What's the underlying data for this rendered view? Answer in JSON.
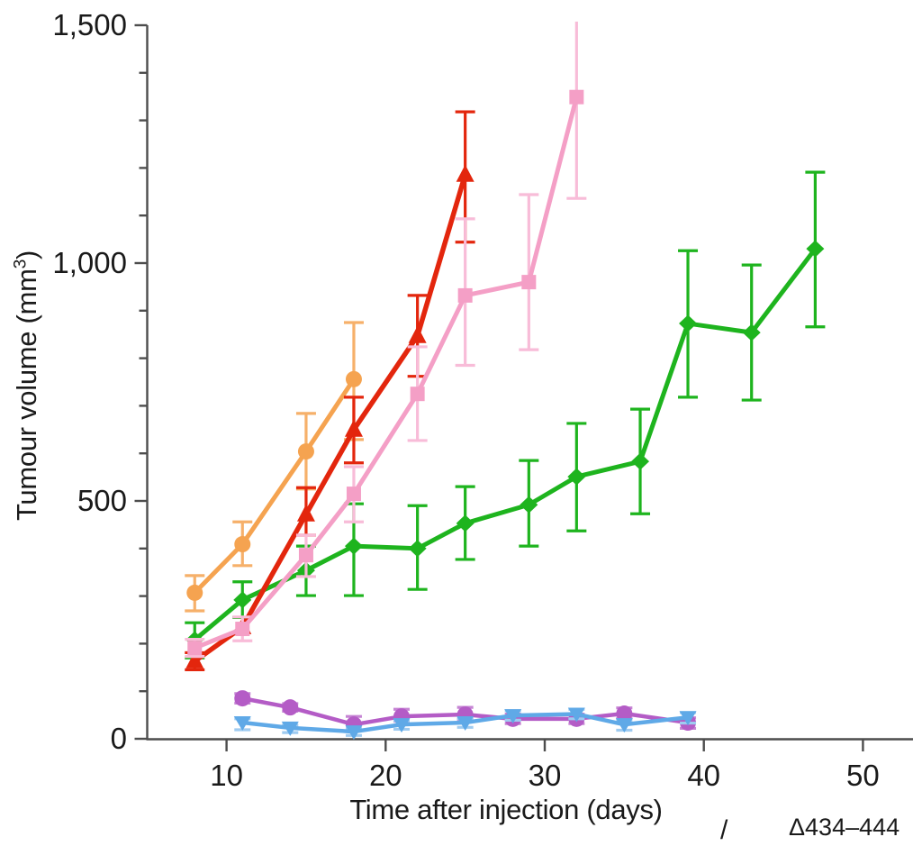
{
  "chart_data": {
    "type": "line",
    "title": "",
    "xlabel": "Time after injection (days)",
    "ylabel": "Tumour volume (mm³)",
    "ylabel_parts": {
      "prefix": "Tumour volume (mm",
      "sup": "3",
      "suffix": ")"
    },
    "xlim": [
      5,
      53
    ],
    "ylim": [
      0,
      1500
    ],
    "grid": false,
    "legend_position": "none-visible (legend cut off at bottom edge)",
    "axis_color": "#4d4d4d",
    "text_color": "#1a1a1a",
    "x_ticks": [
      {
        "value": 10,
        "label": "10"
      },
      {
        "value": 20,
        "label": "20"
      },
      {
        "value": 30,
        "label": "30"
      },
      {
        "value": 40,
        "label": "40"
      },
      {
        "value": 50,
        "label": "50"
      }
    ],
    "y_ticks": [
      {
        "value": 0,
        "label": "0"
      },
      {
        "value": 500,
        "label": "500"
      },
      {
        "value": 1000,
        "label": "1,000"
      },
      {
        "value": 1500,
        "label": "1,500"
      }
    ],
    "y_minor_step": 100,
    "series": [
      {
        "name": "green-diamond",
        "marker": "diamond",
        "color": "#1eb41e",
        "bar_color": "#1eb41e",
        "line_width": 5,
        "days": [
          8,
          11,
          15,
          18,
          22,
          25,
          29,
          32,
          36,
          39,
          43,
          47
        ],
        "values": [
          208,
          292,
          354,
          405,
          400,
          453,
          492,
          551,
          583,
          873,
          854,
          1030
        ],
        "err_up": [
          36,
          38,
          51,
          89,
          90,
          77,
          93,
          112,
          110,
          153,
          142,
          161
        ],
        "err_down": [
          38,
          37,
          53,
          104,
          86,
          76,
          87,
          114,
          110,
          155,
          142,
          164
        ]
      },
      {
        "name": "orange-circle",
        "marker": "circle",
        "color": "#f5a350",
        "bar_color": "#f6b06a",
        "line_width": 5,
        "days": [
          8,
          11,
          15,
          18
        ],
        "values": [
          307,
          409,
          604,
          756
        ],
        "err_up": [
          36,
          47,
          80,
          119
        ],
        "err_down": [
          38,
          45,
          79,
          127
        ]
      },
      {
        "name": "red-triangle",
        "marker": "triangle-up",
        "color": "#e3260d",
        "bar_color": "#e3260d",
        "line_width": 5.5,
        "days": [
          8,
          11,
          15,
          18,
          22,
          25
        ],
        "values": [
          163,
          235,
          472,
          650,
          847,
          1186
        ],
        "err_up": [
          18,
          0,
          56,
          68,
          85,
          132
        ],
        "err_down": [
          18,
          0,
          44,
          70,
          85,
          142
        ]
      },
      {
        "name": "pink-square",
        "marker": "square",
        "color": "#f49fc6",
        "bar_color": "#f8bcd8",
        "line_width": 5,
        "days": [
          8,
          11,
          15,
          18,
          22,
          25,
          29,
          32
        ],
        "values": [
          191,
          231,
          386,
          515,
          725,
          932,
          960,
          1349
        ],
        "err_up": [
          18,
          25,
          42,
          57,
          99,
          161,
          184,
          160
        ],
        "err_down": [
          18,
          25,
          45,
          59,
          98,
          147,
          142,
          213
        ]
      },
      {
        "name": "purple-circle",
        "marker": "circle",
        "color": "#b45cc6",
        "bar_color": "#c684d4",
        "line_width": 4.5,
        "days": [
          11,
          14,
          18,
          21,
          25,
          28,
          32,
          35,
          39
        ],
        "values": [
          85,
          66,
          30,
          47,
          51,
          42,
          42,
          53,
          34
        ],
        "err_up": [
          10,
          8,
          17,
          15,
          15,
          10,
          10,
          12,
          10
        ],
        "err_down": [
          10,
          8,
          10,
          10,
          10,
          10,
          10,
          10,
          12
        ]
      },
      {
        "name": "blue-triangle",
        "marker": "triangle-down",
        "color": "#5fa9e7",
        "bar_color": "#9fcbf0",
        "line_width": 4.5,
        "days": [
          11,
          14,
          18,
          21,
          25,
          28,
          32,
          35,
          39
        ],
        "values": [
          34,
          23,
          15,
          30,
          34,
          49,
          52,
          30,
          45
        ],
        "err_up": [
          8,
          6,
          6,
          8,
          8,
          10,
          10,
          8,
          10
        ],
        "err_down": [
          15,
          10,
          8,
          10,
          10,
          10,
          10,
          12,
          12
        ]
      }
    ]
  },
  "footnote_fragment": {
    "slash": "/",
    "label": "Δ434–444"
  }
}
